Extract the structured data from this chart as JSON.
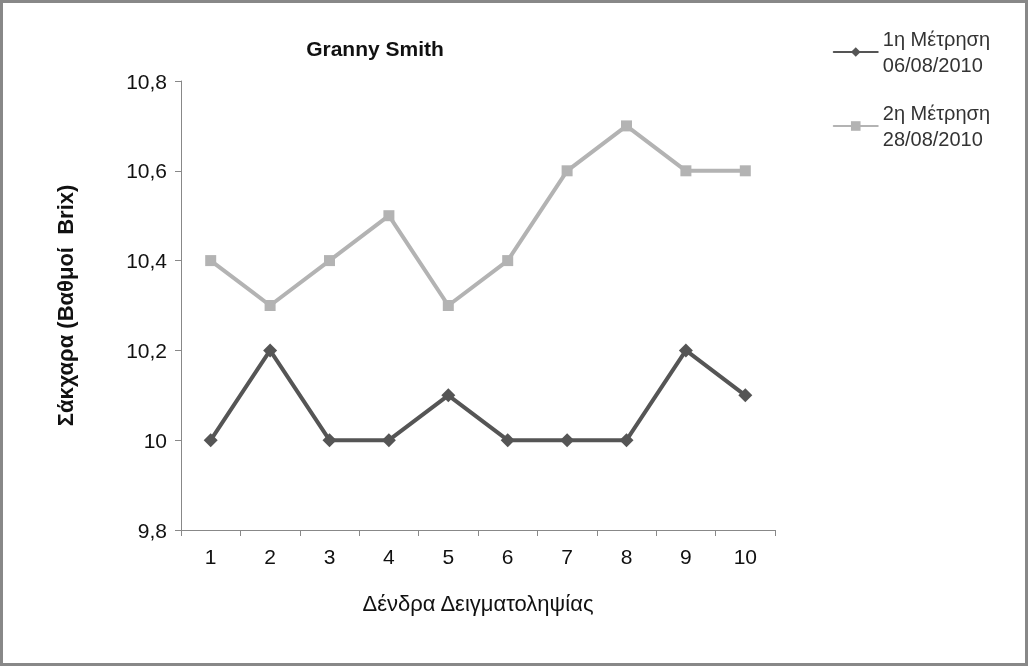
{
  "chart_data": {
    "type": "line",
    "title": "Granny Smith",
    "xlabel": "Δένδρα Δειγματοληψίας",
    "ylabel": "Σάκχαρα (Βαθμοί  Brix)",
    "categories": [
      "1",
      "2",
      "3",
      "4",
      "5",
      "6",
      "7",
      "8",
      "9",
      "10"
    ],
    "series": [
      {
        "name": "1η Μέτρηση 06/08/2010",
        "color": "#555555",
        "marker": "diamond",
        "values": [
          10,
          10.2,
          10,
          10,
          10.1,
          10,
          10,
          10,
          10.2,
          10.1
        ]
      },
      {
        "name": "2η Μέτρηση 28/08/2010",
        "color": "#b3b3b3",
        "marker": "square",
        "values": [
          10.4,
          10.3,
          10.4,
          10.5,
          10.3,
          10.4,
          10.6,
          10.7,
          10.6,
          10.6
        ]
      }
    ],
    "ylim": [
      9.8,
      10.8
    ],
    "yticks": [
      {
        "value": 9.8,
        "label": "9,8"
      },
      {
        "value": 10,
        "label": "10"
      },
      {
        "value": 10.2,
        "label": "10,2"
      },
      {
        "value": 10.4,
        "label": "10,4"
      },
      {
        "value": 10.6,
        "label": "10,6"
      },
      {
        "value": 10.8,
        "label": "10,8"
      }
    ],
    "grid": false,
    "legend": "top right",
    "line_style": "solid"
  }
}
